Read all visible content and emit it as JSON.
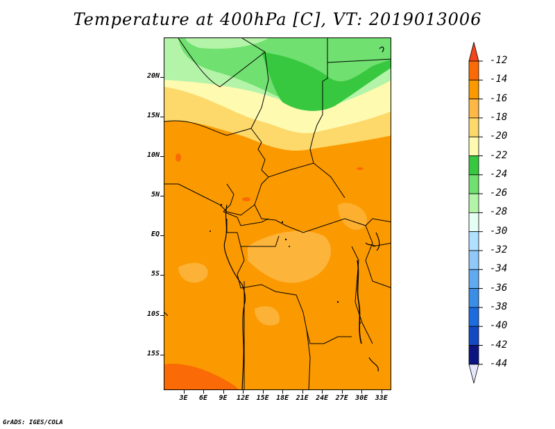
{
  "title": "Temperature at 400hPa [C], VT: 2019013006",
  "credit": "GrADS: IGES/COLA",
  "map": {
    "lat_labels": [
      {
        "label": "20N",
        "lat": 20
      },
      {
        "label": "15N",
        "lat": 15
      },
      {
        "label": "10N",
        "lat": 10
      },
      {
        "label": "5N",
        "lat": 5
      },
      {
        "label": "EQ",
        "lat": 0
      },
      {
        "label": "5S",
        "lat": -5
      },
      {
        "label": "10S",
        "lat": -10
      },
      {
        "label": "15S",
        "lat": -15
      }
    ],
    "lon_labels": [
      {
        "label": "3E",
        "lon": 3
      },
      {
        "label": "6E",
        "lon": 6
      },
      {
        "label": "9E",
        "lon": 9
      },
      {
        "label": "12E",
        "lon": 12
      },
      {
        "label": "15E",
        "lon": 15
      },
      {
        "label": "18E",
        "lon": 18
      },
      {
        "label": "21E",
        "lon": 21
      },
      {
        "label": "24E",
        "lon": 24
      },
      {
        "label": "27E",
        "lon": 27
      },
      {
        "label": "30E",
        "lon": 30
      },
      {
        "label": "33E",
        "lon": 33
      }
    ],
    "lon_range": [
      0,
      34.5
    ],
    "lat_range": [
      -19.5,
      25
    ]
  },
  "colorbar": {
    "labels": [
      "-12",
      "-14",
      "-16",
      "-18",
      "-20",
      "-22",
      "-24",
      "-26",
      "-28",
      "-30",
      "-32",
      "-34",
      "-36",
      "-38",
      "-40",
      "-42",
      "-44"
    ],
    "colors": [
      "#f0481a",
      "#fa6a06",
      "#fb9a00",
      "#fdb845",
      "#fdd86a",
      "#fefab0",
      "#38c840",
      "#70e070",
      "#b4f4a8",
      "#e6fff4",
      "#b0e0ff",
      "#90c8f8",
      "#60aaf2",
      "#3a8ee6",
      "#1c6ce0",
      "#1449c4",
      "#0c1482",
      "#e4e6fc"
    ]
  }
}
